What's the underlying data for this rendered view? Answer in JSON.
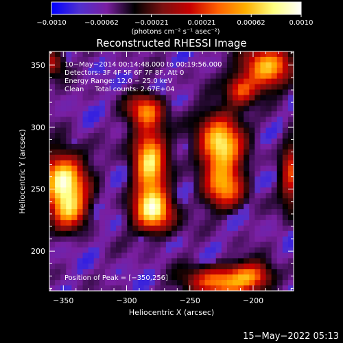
{
  "colorbar": {
    "ticks": [
      "−0.0010",
      "−0.00062",
      "−0.00021",
      "0.00021",
      "0.00062",
      "0.0010"
    ],
    "min": -0.001,
    "max": 0.001,
    "unit_label": "(photons cm⁻² s⁻¹ asec⁻²)",
    "stops": [
      "#0000ff",
      "#5030d0",
      "#7a1fa0",
      "#000000",
      "#7a1010",
      "#c80000",
      "#ff6000",
      "#ffb000",
      "#ffff80",
      "#ffffff"
    ]
  },
  "chart_data": {
    "type": "heatmap",
    "title": "Reconstructed RHESSI Image",
    "xlabel": "Heliocentric X (arcsec)",
    "ylabel": "Heliocentric Y (arcsec)",
    "xlim": [
      -361,
      -168
    ],
    "ylim": [
      168,
      361
    ],
    "xticks": [
      -350,
      -300,
      -250,
      -200
    ],
    "yticks": [
      200,
      250,
      300,
      350
    ],
    "xtick_labels": [
      "−350",
      "−300",
      "−250",
      "−200"
    ],
    "ytick_labels": [
      "200",
      "250",
      "300",
      "350"
    ],
    "sources": [
      {
        "x": -350,
        "y": 256,
        "sx": 12,
        "sy": 16,
        "amp": 1.0
      },
      {
        "x": -345,
        "y": 232,
        "sx": 10,
        "sy": 10,
        "amp": 0.55
      },
      {
        "x": -282,
        "y": 272,
        "sx": 9,
        "sy": 22,
        "amp": 0.88
      },
      {
        "x": -278,
        "y": 232,
        "sx": 11,
        "sy": 12,
        "amp": 0.82
      },
      {
        "x": -285,
        "y": 314,
        "sx": 10,
        "sy": 9,
        "amp": 0.55
      },
      {
        "x": -226,
        "y": 286,
        "sx": 12,
        "sy": 18,
        "amp": 0.92
      },
      {
        "x": -222,
        "y": 250,
        "sx": 11,
        "sy": 12,
        "amp": 0.6
      },
      {
        "x": -190,
        "y": 348,
        "sx": 14,
        "sy": 12,
        "amp": 0.78
      },
      {
        "x": -210,
        "y": 330,
        "sx": 8,
        "sy": 8,
        "amp": 0.5
      },
      {
        "x": -170,
        "y": 262,
        "sx": 6,
        "sy": 20,
        "amp": 0.5
      },
      {
        "x": -228,
        "y": 175,
        "sx": 18,
        "sy": 9,
        "amp": 0.65
      },
      {
        "x": -200,
        "y": 180,
        "sx": 12,
        "sy": 8,
        "amp": 0.55
      },
      {
        "x": -360,
        "y": 352,
        "sx": 8,
        "sy": 8,
        "amp": 0.45
      }
    ],
    "annotations": [
      "10−May−2014 00:14:48.000 to 00:19:56.000",
      "Detectors: 3F 4F 5F 6F 7F 8F, Att 0",
      "Energy Range: 12.0 − 25.0 keV",
      "Clean     Total counts: 2.67E+04"
    ],
    "peak_label": "Position of Peak = [−350,256]"
  },
  "footer_timestamp": "15−May−2022 05:13"
}
